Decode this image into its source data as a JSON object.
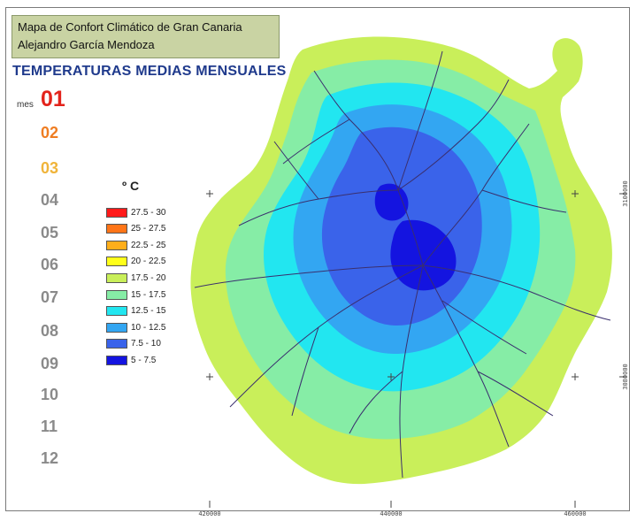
{
  "header": {
    "title_line1": "Mapa de Confort Climático de Gran Canaria",
    "title_line2": "Alejandro García Mendoza"
  },
  "heading": "TEMPERATURAS MEDIAS MENSUALES",
  "month_label": "mes",
  "months": [
    "01",
    "02",
    "03",
    "04",
    "05",
    "06",
    "07",
    "08",
    "09",
    "10",
    "11",
    "12"
  ],
  "month_colors": [
    "#e3231b",
    "#ef7d22",
    "#f0b43a",
    "#8a8a8a",
    "#8a8a8a",
    "#8a8a8a",
    "#8a8a8a",
    "#8a8a8a",
    "#8a8a8a",
    "#8a8a8a",
    "#8a8a8a",
    "#8a8a8a"
  ],
  "selected_month": "01",
  "legend": {
    "unit": "º C",
    "items": [
      {
        "label": "27.5 - 30",
        "color": "#ff1a1a"
      },
      {
        "label": "25 - 27.5",
        "color": "#ff7518"
      },
      {
        "label": "22.5 - 25",
        "color": "#ffae1a"
      },
      {
        "label": "20 - 22.5",
        "color": "#ffff1a"
      },
      {
        "label": "17.5 - 20",
        "color": "#c9ef5a"
      },
      {
        "label": "15 - 17.5",
        "color": "#86eda6"
      },
      {
        "label": "12.5 - 15",
        "color": "#22e6f0"
      },
      {
        "label": "10 - 12.5",
        "color": "#33a6f2"
      },
      {
        "label": "7.5 - 10",
        "color": "#3a63ea"
      },
      {
        "label": "5 - 7.5",
        "color": "#1414e0"
      }
    ]
  },
  "axes": {
    "x_ticks": [
      "420000",
      "440000",
      "460000"
    ],
    "y_ticks": [
      "3100000",
      "3080000"
    ]
  }
}
